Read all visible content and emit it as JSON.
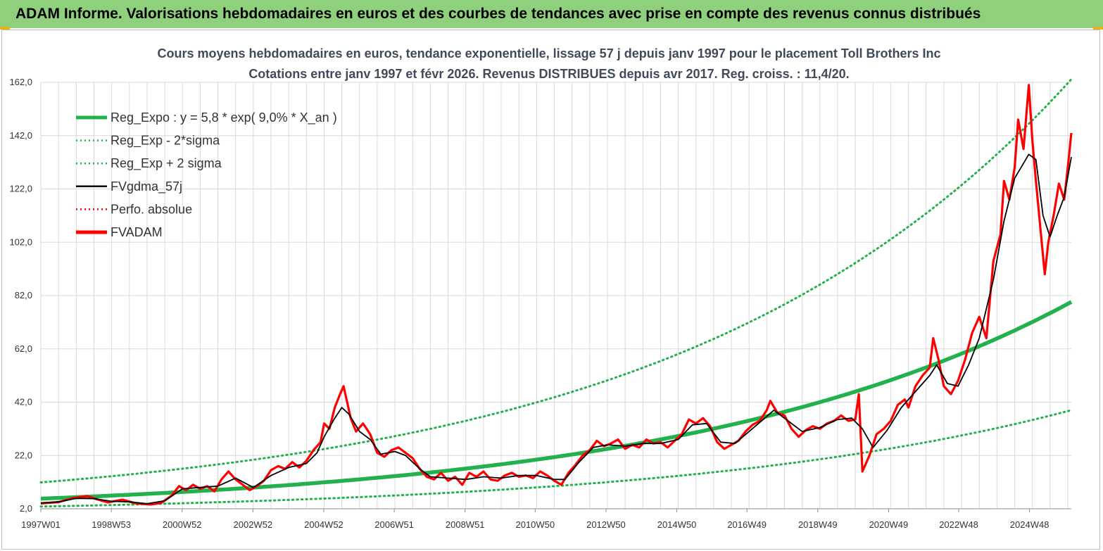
{
  "banner": {
    "title": "ADAM Informe. Valorisations hebdomadaires en euros et des courbes de tendances avec prise en compte des revenus connus distribués"
  },
  "colors": {
    "banner": "#8fd07d",
    "accent": "#e5b313",
    "trend": "#22b14c",
    "fv": "#ff0000",
    "gdma": "#000000"
  },
  "chart_data": {
    "type": "line",
    "title": [
      "Cours moyens hebdomadaires en euros, tendance exponentielle, lissage 57 j depuis janv 1997 pour le placement Toll Brothers Inc",
      "Cotations entre janv 1997 et févr 2026. Revenus DISTRIBUES depuis avr 2017. Reg. croiss. : 11,4/20."
    ],
    "x_range": [
      1997.0,
      2026.1
    ],
    "y_range": [
      2.0,
      162.0
    ],
    "y_ticks": [
      "2,0",
      "22,0",
      "42,0",
      "62,0",
      "82,0",
      "102,0",
      "122,0",
      "142,0",
      "162,0"
    ],
    "x_ticks": [
      {
        "label": "1997W01",
        "t": 1997.0
      },
      {
        "label": "1998W53",
        "t": 1998.99
      },
      {
        "label": "2000W52",
        "t": 2000.99
      },
      {
        "label": "2002W52",
        "t": 2002.99
      },
      {
        "label": "2004W52",
        "t": 2004.99
      },
      {
        "label": "2006W51",
        "t": 2006.98
      },
      {
        "label": "2008W51",
        "t": 2008.98
      },
      {
        "label": "2010W50",
        "t": 2010.96
      },
      {
        "label": "2012W50",
        "t": 2012.96
      },
      {
        "label": "2014W50",
        "t": 2014.96
      },
      {
        "label": "2016W49",
        "t": 2016.94
      },
      {
        "label": "2018W49",
        "t": 2018.94
      },
      {
        "label": "2020W49",
        "t": 2020.94
      },
      {
        "label": "2022W48",
        "t": 2022.92
      },
      {
        "label": "2024W48",
        "t": 2024.92
      }
    ],
    "grid": true,
    "legend_position": "top-left",
    "legend": [
      {
        "key": "reg",
        "label": "Reg_Expo : y = 5,8 * exp( 9,0% *  X_an )",
        "color": "#22b14c",
        "style": "thick"
      },
      {
        "key": "low",
        "label": "Reg_Exp - 2*sigma",
        "color": "#22b14c",
        "style": "dotted"
      },
      {
        "key": "high",
        "label": "Reg_Exp + 2 sigma",
        "color": "#22b14c",
        "style": "dotted"
      },
      {
        "key": "gdma",
        "label": "FVgdma_57j",
        "color": "#000000",
        "style": "solid"
      },
      {
        "key": "perfo",
        "label": "Perfo. absolue",
        "color": "#ff0000",
        "style": "dotted"
      },
      {
        "key": "fv",
        "label": "FVADAM",
        "color": "#ff0000",
        "style": "thick"
      }
    ],
    "trend": {
      "a": 5.8,
      "rate": 0.09,
      "t0": 1997.0,
      "lower_factor": 0.49,
      "upper_factor": 2.05
    },
    "series": [
      {
        "name": "FVADAM",
        "points": [
          [
            1997.0,
            4.0
          ],
          [
            1997.5,
            4.5
          ],
          [
            1997.9,
            6.0
          ],
          [
            1998.3,
            6.8
          ],
          [
            1998.6,
            5.5
          ],
          [
            1998.9,
            4.4
          ],
          [
            1999.3,
            5.4
          ],
          [
            1999.7,
            4.0
          ],
          [
            2000.1,
            3.6
          ],
          [
            2000.4,
            4.2
          ],
          [
            2000.7,
            7.0
          ],
          [
            2000.9,
            10.5
          ],
          [
            2001.1,
            9.0
          ],
          [
            2001.3,
            11.0
          ],
          [
            2001.5,
            9.5
          ],
          [
            2001.7,
            10.5
          ],
          [
            2001.9,
            8.5
          ],
          [
            2002.1,
            13.0
          ],
          [
            2002.3,
            16.0
          ],
          [
            2002.5,
            13.0
          ],
          [
            2002.7,
            11.0
          ],
          [
            2002.9,
            9.0
          ],
          [
            2003.1,
            10.5
          ],
          [
            2003.3,
            12.5
          ],
          [
            2003.5,
            16.5
          ],
          [
            2003.7,
            18.0
          ],
          [
            2003.9,
            17.0
          ],
          [
            2004.1,
            19.5
          ],
          [
            2004.3,
            17.5
          ],
          [
            2004.5,
            20.0
          ],
          [
            2004.7,
            24.0
          ],
          [
            2004.9,
            27.0
          ],
          [
            2005.0,
            34.0
          ],
          [
            2005.15,
            32.0
          ],
          [
            2005.3,
            40.0
          ],
          [
            2005.45,
            45.0
          ],
          [
            2005.55,
            48.0
          ],
          [
            2005.65,
            42.0
          ],
          [
            2005.75,
            36.0
          ],
          [
            2005.9,
            31.0
          ],
          [
            2006.1,
            34.0
          ],
          [
            2006.3,
            30.0
          ],
          [
            2006.5,
            23.0
          ],
          [
            2006.7,
            21.5
          ],
          [
            2006.9,
            24.0
          ],
          [
            2007.1,
            25.0
          ],
          [
            2007.3,
            23.0
          ],
          [
            2007.5,
            21.0
          ],
          [
            2007.7,
            17.0
          ],
          [
            2007.9,
            14.0
          ],
          [
            2008.1,
            13.0
          ],
          [
            2008.3,
            15.5
          ],
          [
            2008.5,
            12.5
          ],
          [
            2008.7,
            14.0
          ],
          [
            2008.9,
            11.0
          ],
          [
            2009.1,
            15.5
          ],
          [
            2009.3,
            14.0
          ],
          [
            2009.5,
            16.0
          ],
          [
            2009.7,
            13.0
          ],
          [
            2009.9,
            12.5
          ],
          [
            2010.1,
            14.5
          ],
          [
            2010.3,
            15.5
          ],
          [
            2010.5,
            14.0
          ],
          [
            2010.7,
            14.5
          ],
          [
            2010.9,
            13.5
          ],
          [
            2011.1,
            16.0
          ],
          [
            2011.3,
            14.5
          ],
          [
            2011.5,
            12.5
          ],
          [
            2011.7,
            11.0
          ],
          [
            2011.9,
            15.5
          ],
          [
            2012.1,
            18.5
          ],
          [
            2012.3,
            22.0
          ],
          [
            2012.5,
            24.0
          ],
          [
            2012.7,
            27.5
          ],
          [
            2012.9,
            25.5
          ],
          [
            2013.1,
            26.5
          ],
          [
            2013.3,
            28.0
          ],
          [
            2013.5,
            24.5
          ],
          [
            2013.7,
            26.0
          ],
          [
            2013.9,
            25.0
          ],
          [
            2014.1,
            28.0
          ],
          [
            2014.3,
            26.5
          ],
          [
            2014.5,
            27.0
          ],
          [
            2014.7,
            25.0
          ],
          [
            2014.9,
            27.5
          ],
          [
            2015.1,
            30.0
          ],
          [
            2015.3,
            35.5
          ],
          [
            2015.5,
            34.0
          ],
          [
            2015.7,
            36.0
          ],
          [
            2015.9,
            33.0
          ],
          [
            2016.1,
            27.0
          ],
          [
            2016.3,
            24.5
          ],
          [
            2016.5,
            26.0
          ],
          [
            2016.7,
            27.5
          ],
          [
            2016.9,
            31.0
          ],
          [
            2017.1,
            33.5
          ],
          [
            2017.3,
            35.0
          ],
          [
            2017.5,
            39.0
          ],
          [
            2017.6,
            42.5
          ],
          [
            2017.8,
            38.0
          ],
          [
            2018.0,
            37.0
          ],
          [
            2018.2,
            32.0
          ],
          [
            2018.4,
            29.0
          ],
          [
            2018.6,
            31.5
          ],
          [
            2018.8,
            33.0
          ],
          [
            2019.0,
            32.0
          ],
          [
            2019.2,
            34.0
          ],
          [
            2019.4,
            35.0
          ],
          [
            2019.6,
            37.0
          ],
          [
            2019.8,
            35.0
          ],
          [
            2020.0,
            35.5
          ],
          [
            2020.1,
            45.0
          ],
          [
            2020.2,
            16.0
          ],
          [
            2020.4,
            22.0
          ],
          [
            2020.6,
            30.0
          ],
          [
            2020.8,
            32.0
          ],
          [
            2021.0,
            35.0
          ],
          [
            2021.2,
            41.0
          ],
          [
            2021.4,
            43.0
          ],
          [
            2021.5,
            40.0
          ],
          [
            2021.7,
            48.0
          ],
          [
            2021.9,
            52.0
          ],
          [
            2022.1,
            55.0
          ],
          [
            2022.2,
            66.0
          ],
          [
            2022.35,
            58.0
          ],
          [
            2022.5,
            48.0
          ],
          [
            2022.7,
            45.0
          ],
          [
            2022.9,
            50.0
          ],
          [
            2023.1,
            58.0
          ],
          [
            2023.3,
            68.0
          ],
          [
            2023.5,
            74.0
          ],
          [
            2023.7,
            66.0
          ],
          [
            2023.9,
            95.0
          ],
          [
            2024.1,
            105.0
          ],
          [
            2024.2,
            125.0
          ],
          [
            2024.35,
            118.0
          ],
          [
            2024.5,
            130.0
          ],
          [
            2024.6,
            148.0
          ],
          [
            2024.75,
            137.0
          ],
          [
            2024.9,
            161.0
          ],
          [
            2025.0,
            140.0
          ],
          [
            2025.1,
            125.0
          ],
          [
            2025.25,
            104.0
          ],
          [
            2025.35,
            90.0
          ],
          [
            2025.45,
            102.0
          ],
          [
            2025.6,
            112.0
          ],
          [
            2025.75,
            124.0
          ],
          [
            2025.9,
            118.0
          ],
          [
            2026.0,
            130.0
          ],
          [
            2026.1,
            143.0
          ]
        ]
      },
      {
        "name": "FVgdma_57j",
        "points": [
          [
            1997.0,
            4.2
          ],
          [
            1997.5,
            4.6
          ],
          [
            1998.0,
            5.9
          ],
          [
            1998.5,
            5.8
          ],
          [
            1999.0,
            4.8
          ],
          [
            1999.5,
            4.6
          ],
          [
            2000.0,
            3.9
          ],
          [
            2000.5,
            5.0
          ],
          [
            2001.0,
            9.5
          ],
          [
            2001.5,
            10.0
          ],
          [
            2002.0,
            10.5
          ],
          [
            2002.5,
            13.5
          ],
          [
            2003.0,
            10.0
          ],
          [
            2003.5,
            14.5
          ],
          [
            2004.0,
            17.5
          ],
          [
            2004.5,
            19.0
          ],
          [
            2004.8,
            23.0
          ],
          [
            2005.0,
            29.0
          ],
          [
            2005.3,
            36.0
          ],
          [
            2005.5,
            40.0
          ],
          [
            2005.7,
            37.5
          ],
          [
            2006.0,
            31.0
          ],
          [
            2006.3,
            28.0
          ],
          [
            2006.6,
            22.5
          ],
          [
            2007.0,
            23.5
          ],
          [
            2007.3,
            22.0
          ],
          [
            2007.7,
            17.0
          ],
          [
            2008.0,
            14.0
          ],
          [
            2008.5,
            13.5
          ],
          [
            2009.0,
            13.0
          ],
          [
            2009.5,
            14.0
          ],
          [
            2010.0,
            13.5
          ],
          [
            2010.5,
            14.5
          ],
          [
            2011.0,
            14.5
          ],
          [
            2011.5,
            13.0
          ],
          [
            2011.8,
            13.0
          ],
          [
            2012.2,
            19.5
          ],
          [
            2012.6,
            25.0
          ],
          [
            2013.0,
            26.0
          ],
          [
            2013.5,
            25.5
          ],
          [
            2014.0,
            26.5
          ],
          [
            2014.5,
            26.5
          ],
          [
            2015.0,
            28.0
          ],
          [
            2015.4,
            33.5
          ],
          [
            2015.8,
            34.0
          ],
          [
            2016.2,
            27.0
          ],
          [
            2016.6,
            26.5
          ],
          [
            2017.0,
            31.0
          ],
          [
            2017.4,
            35.5
          ],
          [
            2017.7,
            39.0
          ],
          [
            2018.1,
            35.0
          ],
          [
            2018.5,
            31.0
          ],
          [
            2019.0,
            32.5
          ],
          [
            2019.5,
            35.5
          ],
          [
            2019.9,
            36.0
          ],
          [
            2020.2,
            32.0
          ],
          [
            2020.5,
            25.0
          ],
          [
            2020.9,
            31.5
          ],
          [
            2021.3,
            40.0
          ],
          [
            2021.7,
            46.0
          ],
          [
            2022.1,
            52.0
          ],
          [
            2022.3,
            56.0
          ],
          [
            2022.6,
            49.0
          ],
          [
            2022.9,
            48.0
          ],
          [
            2023.2,
            56.0
          ],
          [
            2023.5,
            66.0
          ],
          [
            2023.9,
            88.0
          ],
          [
            2024.2,
            110.0
          ],
          [
            2024.5,
            126.0
          ],
          [
            2024.9,
            135.0
          ],
          [
            2025.1,
            133.0
          ],
          [
            2025.3,
            112.0
          ],
          [
            2025.5,
            104.0
          ],
          [
            2025.7,
            112.0
          ],
          [
            2025.9,
            119.0
          ],
          [
            2026.1,
            134.0
          ]
        ]
      }
    ]
  }
}
